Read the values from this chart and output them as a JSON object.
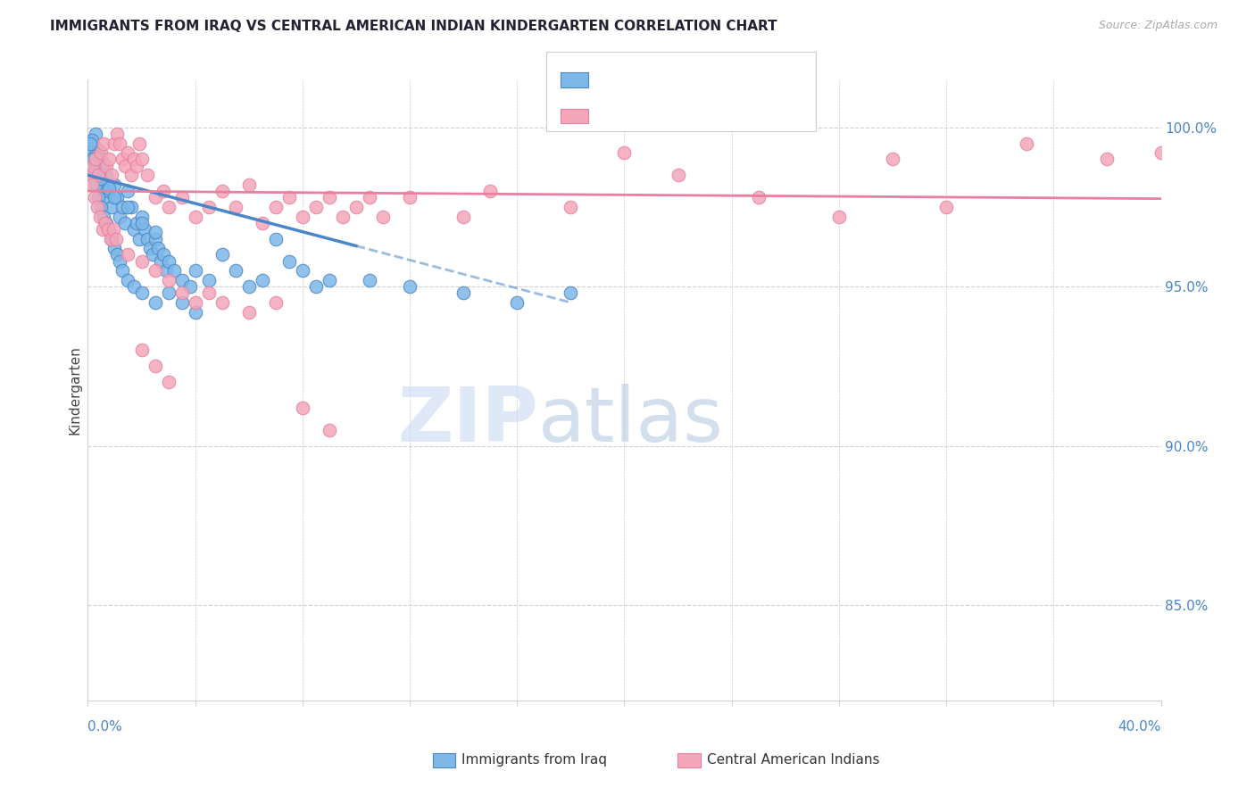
{
  "title": "IMMIGRANTS FROM IRAQ VS CENTRAL AMERICAN INDIAN KINDERGARTEN CORRELATION CHART",
  "source": "Source: ZipAtlas.com",
  "ylabel": "Kindergarten",
  "right_yticks": [
    85.0,
    90.0,
    95.0,
    100.0
  ],
  "right_ytick_labels": [
    "85.0%",
    "90.0%",
    "95.0%",
    "100.0%"
  ],
  "xmin": 0.0,
  "xmax": 40.0,
  "ymin": 82.0,
  "ymax": 101.5,
  "blue_points": [
    [
      0.2,
      99.5
    ],
    [
      0.3,
      99.8
    ],
    [
      0.4,
      99.3
    ],
    [
      0.5,
      99.0
    ],
    [
      0.6,
      98.8
    ],
    [
      0.1,
      99.2
    ],
    [
      0.15,
      99.6
    ],
    [
      0.25,
      99.1
    ],
    [
      0.35,
      98.5
    ],
    [
      0.45,
      98.2
    ],
    [
      0.55,
      98.0
    ],
    [
      0.65,
      97.8
    ],
    [
      0.7,
      98.5
    ],
    [
      0.8,
      98.0
    ],
    [
      0.9,
      97.5
    ],
    [
      1.0,
      98.2
    ],
    [
      1.1,
      97.8
    ],
    [
      1.2,
      97.2
    ],
    [
      1.3,
      97.5
    ],
    [
      1.4,
      97.0
    ],
    [
      1.5,
      98.0
    ],
    [
      1.6,
      97.5
    ],
    [
      1.7,
      96.8
    ],
    [
      1.8,
      97.0
    ],
    [
      1.9,
      96.5
    ],
    [
      2.0,
      97.2
    ],
    [
      2.1,
      96.8
    ],
    [
      2.2,
      96.5
    ],
    [
      2.3,
      96.2
    ],
    [
      2.4,
      96.0
    ],
    [
      2.5,
      96.5
    ],
    [
      2.6,
      96.2
    ],
    [
      2.7,
      95.8
    ],
    [
      2.8,
      96.0
    ],
    [
      2.9,
      95.5
    ],
    [
      3.0,
      95.8
    ],
    [
      3.2,
      95.5
    ],
    [
      3.5,
      95.2
    ],
    [
      3.8,
      95.0
    ],
    [
      4.0,
      95.5
    ],
    [
      4.5,
      95.2
    ],
    [
      5.0,
      96.0
    ],
    [
      5.5,
      95.5
    ],
    [
      6.0,
      95.0
    ],
    [
      6.5,
      95.2
    ],
    [
      7.0,
      96.5
    ],
    [
      7.5,
      95.8
    ],
    [
      8.0,
      95.5
    ],
    [
      8.5,
      95.0
    ],
    [
      9.0,
      95.2
    ],
    [
      0.1,
      98.8
    ],
    [
      0.2,
      98.5
    ],
    [
      0.3,
      98.2
    ],
    [
      0.4,
      97.8
    ],
    [
      0.5,
      97.5
    ],
    [
      0.6,
      97.2
    ],
    [
      0.7,
      97.0
    ],
    [
      0.8,
      96.8
    ],
    [
      0.9,
      96.5
    ],
    [
      1.0,
      96.2
    ],
    [
      1.1,
      96.0
    ],
    [
      1.2,
      95.8
    ],
    [
      1.3,
      95.5
    ],
    [
      1.5,
      95.2
    ],
    [
      1.7,
      95.0
    ],
    [
      2.0,
      94.8
    ],
    [
      2.5,
      94.5
    ],
    [
      3.0,
      94.8
    ],
    [
      3.5,
      94.5
    ],
    [
      4.0,
      94.2
    ],
    [
      0.1,
      99.5
    ],
    [
      0.2,
      99.0
    ],
    [
      0.3,
      98.7
    ],
    [
      0.5,
      98.4
    ],
    [
      0.8,
      98.1
    ],
    [
      1.0,
      97.8
    ],
    [
      1.5,
      97.5
    ],
    [
      2.0,
      97.0
    ],
    [
      2.5,
      96.7
    ],
    [
      10.5,
      95.2
    ],
    [
      12.0,
      95.0
    ],
    [
      14.0,
      94.8
    ],
    [
      16.0,
      94.5
    ],
    [
      18.0,
      94.8
    ]
  ],
  "pink_points": [
    [
      0.1,
      98.5
    ],
    [
      0.2,
      98.8
    ],
    [
      0.3,
      99.0
    ],
    [
      0.4,
      98.5
    ],
    [
      0.5,
      99.2
    ],
    [
      0.6,
      99.5
    ],
    [
      0.7,
      98.8
    ],
    [
      0.8,
      99.0
    ],
    [
      0.9,
      98.5
    ],
    [
      1.0,
      99.5
    ],
    [
      1.1,
      99.8
    ],
    [
      1.2,
      99.5
    ],
    [
      1.3,
      99.0
    ],
    [
      1.4,
      98.8
    ],
    [
      1.5,
      99.2
    ],
    [
      1.6,
      98.5
    ],
    [
      1.7,
      99.0
    ],
    [
      1.8,
      98.8
    ],
    [
      1.9,
      99.5
    ],
    [
      2.0,
      99.0
    ],
    [
      2.2,
      98.5
    ],
    [
      2.5,
      97.8
    ],
    [
      2.8,
      98.0
    ],
    [
      3.0,
      97.5
    ],
    [
      3.5,
      97.8
    ],
    [
      4.0,
      97.2
    ],
    [
      4.5,
      97.5
    ],
    [
      5.0,
      98.0
    ],
    [
      5.5,
      97.5
    ],
    [
      6.0,
      98.2
    ],
    [
      6.5,
      97.0
    ],
    [
      7.0,
      97.5
    ],
    [
      7.5,
      97.8
    ],
    [
      8.0,
      97.2
    ],
    [
      8.5,
      97.5
    ],
    [
      9.0,
      97.8
    ],
    [
      9.5,
      97.2
    ],
    [
      10.0,
      97.5
    ],
    [
      10.5,
      97.8
    ],
    [
      11.0,
      97.2
    ],
    [
      0.15,
      98.2
    ],
    [
      0.25,
      97.8
    ],
    [
      0.35,
      97.5
    ],
    [
      0.45,
      97.2
    ],
    [
      0.55,
      96.8
    ],
    [
      0.65,
      97.0
    ],
    [
      0.75,
      96.8
    ],
    [
      0.85,
      96.5
    ],
    [
      0.95,
      96.8
    ],
    [
      1.05,
      96.5
    ],
    [
      1.5,
      96.0
    ],
    [
      2.0,
      95.8
    ],
    [
      2.5,
      95.5
    ],
    [
      3.0,
      95.2
    ],
    [
      3.5,
      94.8
    ],
    [
      4.0,
      94.5
    ],
    [
      4.5,
      94.8
    ],
    [
      5.0,
      94.5
    ],
    [
      6.0,
      94.2
    ],
    [
      7.0,
      94.5
    ],
    [
      2.0,
      93.0
    ],
    [
      2.5,
      92.5
    ],
    [
      3.0,
      92.0
    ],
    [
      8.0,
      91.2
    ],
    [
      9.0,
      90.5
    ],
    [
      20.0,
      99.2
    ],
    [
      22.0,
      98.5
    ],
    [
      25.0,
      97.8
    ],
    [
      28.0,
      97.2
    ],
    [
      30.0,
      99.0
    ],
    [
      32.0,
      97.5
    ],
    [
      35.0,
      99.5
    ],
    [
      38.0,
      99.0
    ],
    [
      40.0,
      99.2
    ],
    [
      15.0,
      98.0
    ],
    [
      18.0,
      97.5
    ],
    [
      12.0,
      97.8
    ],
    [
      14.0,
      97.2
    ]
  ],
  "blue_color": "#7db8e8",
  "blue_edge": "#4a86c8",
  "pink_color": "#f4a7b9",
  "pink_edge": "#e87fa0",
  "blue_trend_x": [
    0.0,
    18.0
  ],
  "blue_trend_y": [
    98.5,
    94.5
  ],
  "blue_trend_dash_from_x": 10.0,
  "pink_trend_x": [
    0.0,
    40.0
  ],
  "pink_trend_y": [
    98.0,
    97.76
  ],
  "watermark_zip": "ZIP",
  "watermark_atlas": "atlas",
  "title_color": "#222233",
  "axis_color": "#4a86c8",
  "grid_color": "#d0d0d0",
  "background_color": "#ffffff"
}
